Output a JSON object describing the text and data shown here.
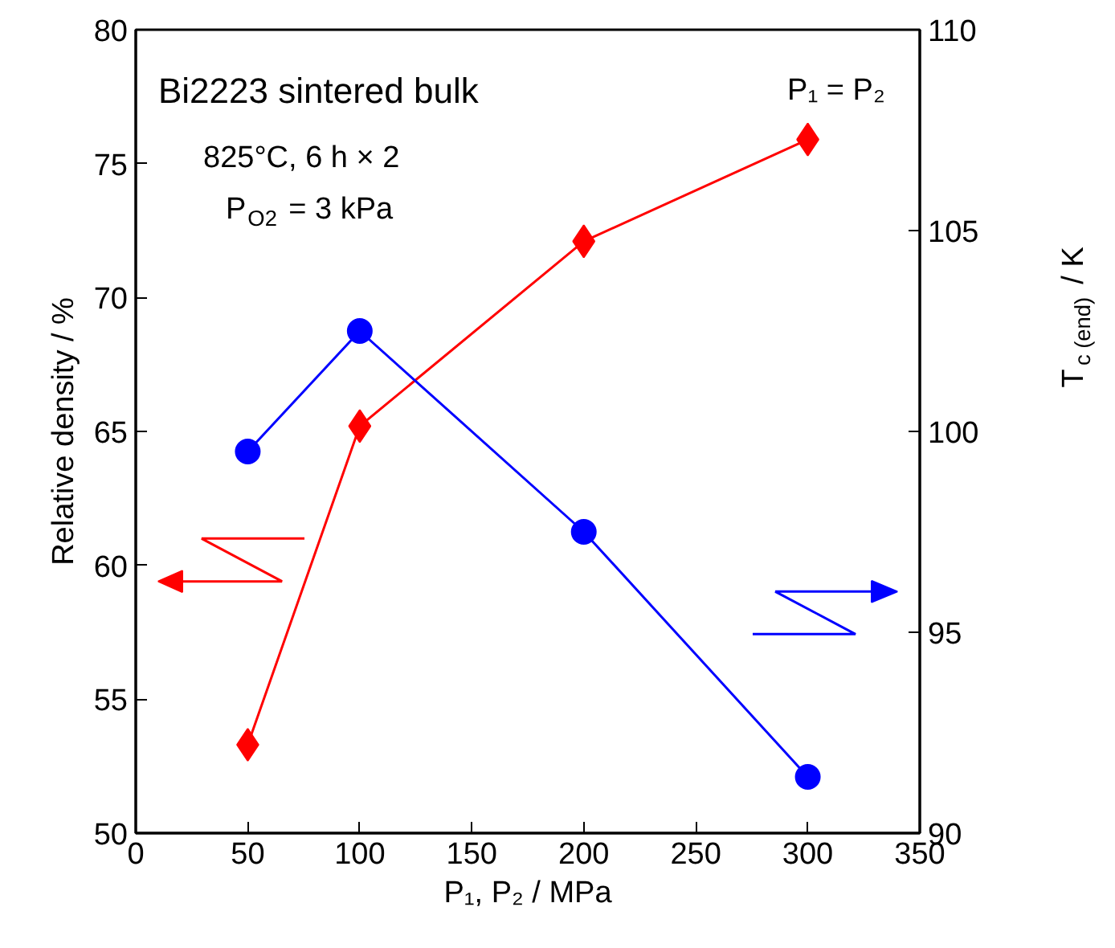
{
  "chart_data": {
    "type": "line",
    "xlabel": "P₁, P₂ / MPa",
    "ylabel": "Relative density / %",
    "y2label": "T$_{c (end)}$ / K",
    "x": [
      50,
      100,
      200,
      300
    ],
    "xlim": [
      0,
      350
    ],
    "xticks": [
      0,
      50,
      100,
      150,
      200,
      250,
      300,
      350
    ],
    "ylim": [
      50,
      80
    ],
    "yticks": [
      50,
      55,
      60,
      65,
      70,
      75,
      80
    ],
    "y2lim": [
      90,
      110
    ],
    "y2ticks": [
      90,
      95,
      100,
      105,
      110
    ],
    "grid": false,
    "line_style": "solid",
    "annotations": [
      "Bi2223 sintered bulk",
      "825°C, 6 h × 2",
      "P$_{O2}$ = 3 kPa",
      "P₁ = P₂"
    ],
    "series": [
      {
        "color": "#ff0000",
        "marker": "diamond",
        "values": [
          53.3,
          65.2,
          72.1,
          75.9
        ]
      },
      {
        "color": "#0000ff",
        "marker": "circle",
        "axis": "y2",
        "values": [
          99.5,
          102.5,
          97.5,
          91.4
        ]
      }
    ]
  }
}
